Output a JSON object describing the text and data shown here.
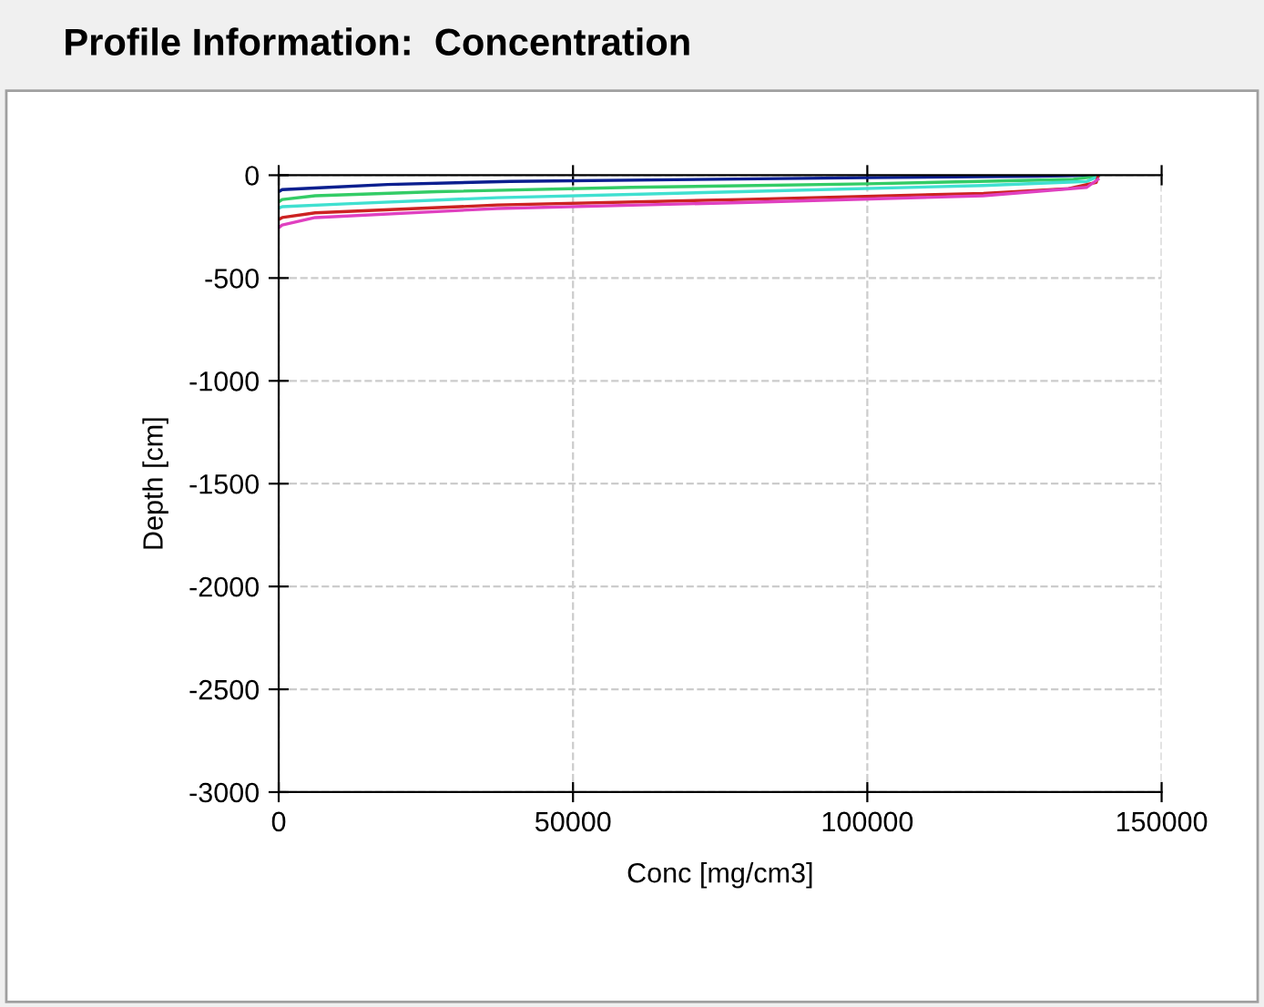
{
  "chart_data": {
    "type": "line",
    "title": "Profile Information:  Concentration",
    "xlabel": "Conc [mg/cm3]",
    "ylabel": "Depth [cm]",
    "xlim": [
      0,
      150000
    ],
    "ylim": [
      -3000,
      0
    ],
    "xticks": [
      0,
      50000,
      100000,
      150000
    ],
    "yticks": [
      -3000,
      -2500,
      -2000,
      -1500,
      -1000,
      -500,
      0
    ],
    "grid": true,
    "marker": "none",
    "line_style": "solid",
    "series": [
      {
        "color": "#0b1f8f",
        "x": [
          0,
          600,
          7700,
          18500,
          39300,
          100000,
          129000,
          139000
        ],
        "values": [
          -80,
          -70,
          -60,
          -45,
          -30,
          -12,
          -5,
          0
        ]
      },
      {
        "color": "#33cc66",
        "x": [
          0,
          600,
          6200,
          26900,
          60000,
          100000,
          135000,
          139200
        ],
        "values": [
          -130,
          -118,
          -100,
          -80,
          -59,
          -42,
          -20,
          -5
        ]
      },
      {
        "color": "#40e0d0",
        "x": [
          0,
          600,
          11400,
          37100,
          78500,
          119700,
          137300,
          139200
        ],
        "values": [
          -160,
          -153,
          -139,
          -109,
          -80,
          -50,
          -30,
          -5
        ]
      },
      {
        "color": "#cc2222",
        "x": [
          0,
          600,
          6200,
          37100,
          78500,
          119700,
          134200,
          138900,
          139200
        ],
        "values": [
          -215,
          -206,
          -183,
          -145,
          -118,
          -88,
          -65,
          -35,
          -5
        ]
      },
      {
        "color": "#e040c0",
        "x": [
          0,
          600,
          6200,
          37100,
          78500,
          119700,
          137300,
          139200
        ],
        "values": [
          -255,
          -242,
          -206,
          -162,
          -133,
          -100,
          -59,
          -20
        ]
      }
    ]
  }
}
